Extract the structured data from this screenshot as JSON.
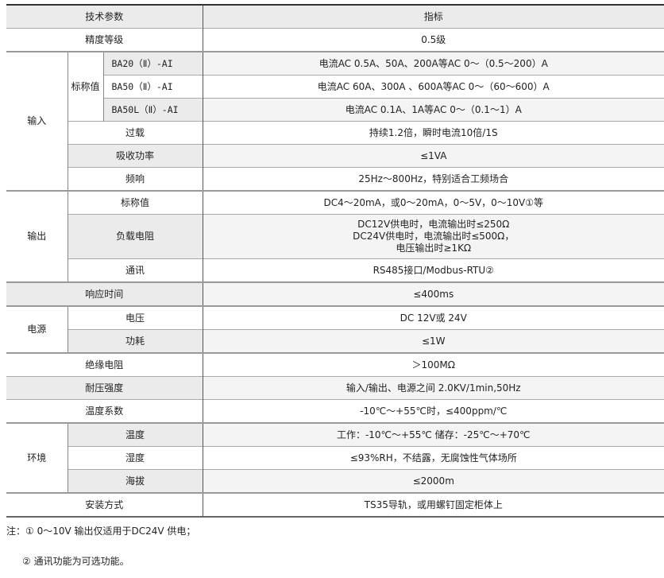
{
  "header": {
    "param": "技术参数",
    "spec": "指标"
  },
  "rows": {
    "accuracy": {
      "label": "精度等级",
      "value": "0.5级"
    },
    "input": {
      "group": "输入",
      "nominal": "标称值",
      "models": [
        {
          "model": "BA20（Ⅱ）-AI",
          "value": "电流AC 0.5A、50A、200A等AC 0～（0.5～200）A"
        },
        {
          "model": "BA50（Ⅱ）-AI",
          "value": "电流AC 60A、300A 、600A等AC 0～（60～600）A"
        },
        {
          "model": "BA50L（Ⅱ）-AI",
          "value": "电流AC 0.1A、1A等AC 0～（0.1～1）A"
        }
      ],
      "overload": {
        "label": "过载",
        "value": "持续1.2倍，瞬时电流10倍/1S"
      },
      "power": {
        "label": "吸收功率",
        "value": "≤1VA"
      },
      "freq": {
        "label": "频响",
        "value": "25Hz～800Hz，特别适合工频场合"
      }
    },
    "output": {
      "group": "输出",
      "nominal": {
        "label": "标称值",
        "value": "DC4～20mA，或0～20mA，0～5V，0～10V①等"
      },
      "load": {
        "label": "负载电阻",
        "lines": [
          "DC12V供电时，电流输出时≤250Ω",
          "DC24V供电时，电流输出时≤500Ω，",
          "电压输出时≥1KΩ"
        ]
      },
      "comm": {
        "label": "通讯",
        "value": "RS485接口/Modbus-RTU②"
      }
    },
    "response": {
      "label": "响应时间",
      "value": "≤400ms"
    },
    "supply": {
      "group": "电源",
      "voltage": {
        "label": "电压",
        "value": "DC 12V或 24V"
      },
      "consumption": {
        "label": "功耗",
        "value": "≤1W"
      }
    },
    "insulation": {
      "label": "绝缘电阻",
      "value": "＞100MΩ"
    },
    "withstand": {
      "label": "耐压强度",
      "value": "输入/输出、电源之间 2.0KV/1min,50Hz"
    },
    "tempcoef": {
      "label": "温度系数",
      "value": "-10℃～+55℃时，≤400ppm/℃"
    },
    "env": {
      "group": "环境",
      "temp": {
        "label": "温度",
        "value": "工作：-10℃～+55℃ 储存：-25℃～+70℃"
      },
      "humidity": {
        "label": "湿度",
        "value": "≤93%RH，不结露，无腐蚀性气体场所"
      },
      "altitude": {
        "label": "海拔",
        "value": "≤2000m"
      }
    },
    "mount": {
      "label": "安装方式",
      "value": "TS35导轨，或用螺钉固定柜体上"
    }
  },
  "notes": {
    "note1": "注：① 0～10V 输出仅适用于DC24V 供电；",
    "note2": "② 通讯功能为可选功能。"
  }
}
